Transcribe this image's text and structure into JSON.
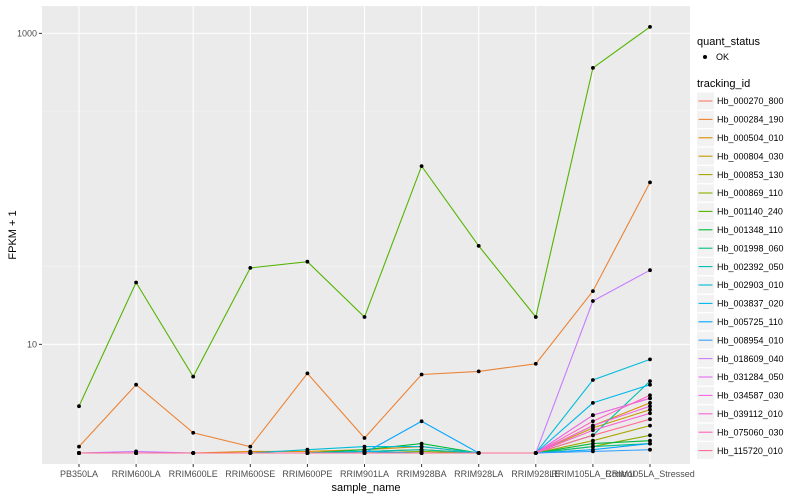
{
  "chart_data": {
    "type": "line",
    "xlabel": "sample_name",
    "ylabel": "FPKM + 1",
    "y_scale": "log10",
    "ylim": [
      1.7,
      1500
    ],
    "y_ticks": [
      10,
      1000
    ],
    "y_tick_labels": [
      "10",
      "1000"
    ],
    "grid": true,
    "categories": [
      "PB350LA",
      "RRIM600LA",
      "RRIM600LE",
      "RRIM600SE",
      "RRIM600PE",
      "RRIM901LA",
      "RRIM928BA",
      "RRIM928LA",
      "RRIM928LE",
      "RRIM105LA_Control",
      "RRIM105LA_Stressed"
    ],
    "markers": {
      "legend_title": "quant_status",
      "label": "OK",
      "color": "#000000"
    },
    "legend_title": "tracking_id",
    "legend_position": "right",
    "series": [
      {
        "name": "Hb_000270_800",
        "color": "#F8766D",
        "values": [
          2,
          2,
          2,
          2,
          2,
          2,
          2,
          2,
          2,
          3.5,
          4.5
        ]
      },
      {
        "name": "Hb_000284_190",
        "color": "#EB8335",
        "values": [
          2.2,
          5.5,
          2.7,
          2.2,
          6.5,
          2.5,
          6.4,
          6.7,
          7.5,
          22,
          110
        ]
      },
      {
        "name": "Hb_000504_010",
        "color": "#DA8F00",
        "values": [
          2,
          2,
          2,
          2.05,
          2.05,
          2.1,
          2.2,
          2,
          2,
          3,
          4.2
        ]
      },
      {
        "name": "Hb_000804_030",
        "color": "#C49A00",
        "values": [
          2,
          2,
          2,
          2,
          2,
          2.05,
          2.1,
          2,
          2,
          2.9,
          3.8
        ]
      },
      {
        "name": "Hb_000853_130",
        "color": "#A9A400",
        "values": [
          2,
          2,
          2,
          2,
          2,
          2,
          2,
          2,
          2,
          2.4,
          3
        ]
      },
      {
        "name": "Hb_000869_110",
        "color": "#86AC00",
        "values": [
          2,
          2,
          2,
          2,
          2,
          2,
          2.05,
          2,
          2,
          2.2,
          2.6
        ]
      },
      {
        "name": "Hb_001140_240",
        "color": "#53B400",
        "values": [
          4,
          25,
          6.2,
          31,
          34,
          15,
          140,
          43,
          15,
          600,
          1100
        ]
      },
      {
        "name": "Hb_001348_110",
        "color": "#00BA38",
        "values": [
          2,
          2,
          2,
          2,
          2,
          2.1,
          2.3,
          2,
          2,
          2.3,
          2.4
        ]
      },
      {
        "name": "Hb_001998_060",
        "color": "#00BF7D",
        "values": [
          2,
          2,
          2,
          2,
          2,
          2,
          2,
          2,
          2,
          2.2,
          2.3
        ]
      },
      {
        "name": "Hb_002392_050",
        "color": "#00C0AF",
        "values": [
          2,
          2,
          2,
          2,
          2,
          2.05,
          2.1,
          2,
          2,
          2.6,
          5.8
        ]
      },
      {
        "name": "Hb_002903_010",
        "color": "#00BCD8",
        "values": [
          2,
          2,
          2,
          2,
          2.1,
          2.2,
          2.2,
          2,
          2,
          5.9,
          8
        ]
      },
      {
        "name": "Hb_003837_020",
        "color": "#00B6EB",
        "values": [
          2,
          2,
          2,
          2,
          2,
          2.05,
          2,
          2,
          2,
          4.2,
          5.5
        ]
      },
      {
        "name": "Hb_005725_110",
        "color": "#00A5FF",
        "values": [
          2,
          2,
          2,
          2,
          2,
          2,
          3.2,
          2,
          2,
          2.1,
          2.3
        ]
      },
      {
        "name": "Hb_008954_010",
        "color": "#35A2FF",
        "values": [
          2,
          2,
          2,
          2,
          2,
          2,
          2,
          2,
          2,
          2.05,
          2.1
        ]
      },
      {
        "name": "Hb_018609_040",
        "color": "#C77CFF",
        "values": [
          2,
          2.05,
          2,
          2,
          2,
          2,
          2,
          2,
          2,
          19,
          30
        ]
      },
      {
        "name": "Hb_031284_050",
        "color": "#E76BF3",
        "values": [
          2,
          2,
          2,
          2,
          2,
          2,
          2,
          2,
          2,
          3.5,
          4.5
        ]
      },
      {
        "name": "Hb_034587_030",
        "color": "#F564E3",
        "values": [
          2,
          2,
          2,
          2,
          2,
          2,
          2,
          2,
          2,
          3,
          4
        ]
      },
      {
        "name": "Hb_039112_010",
        "color": "#FA62D4",
        "values": [
          2,
          2,
          2,
          2,
          2,
          2,
          2,
          2,
          2,
          2.8,
          3.6
        ]
      },
      {
        "name": "Hb_075060_030",
        "color": "#FF62BC",
        "values": [
          2,
          2,
          2,
          2,
          2,
          2,
          2,
          2,
          2,
          3.2,
          4.7
        ]
      },
      {
        "name": "Hb_115720_010",
        "color": "#FF6C91",
        "values": [
          2,
          2,
          2,
          2,
          2,
          2,
          2,
          2,
          2,
          2.6,
          3.3
        ]
      }
    ]
  }
}
